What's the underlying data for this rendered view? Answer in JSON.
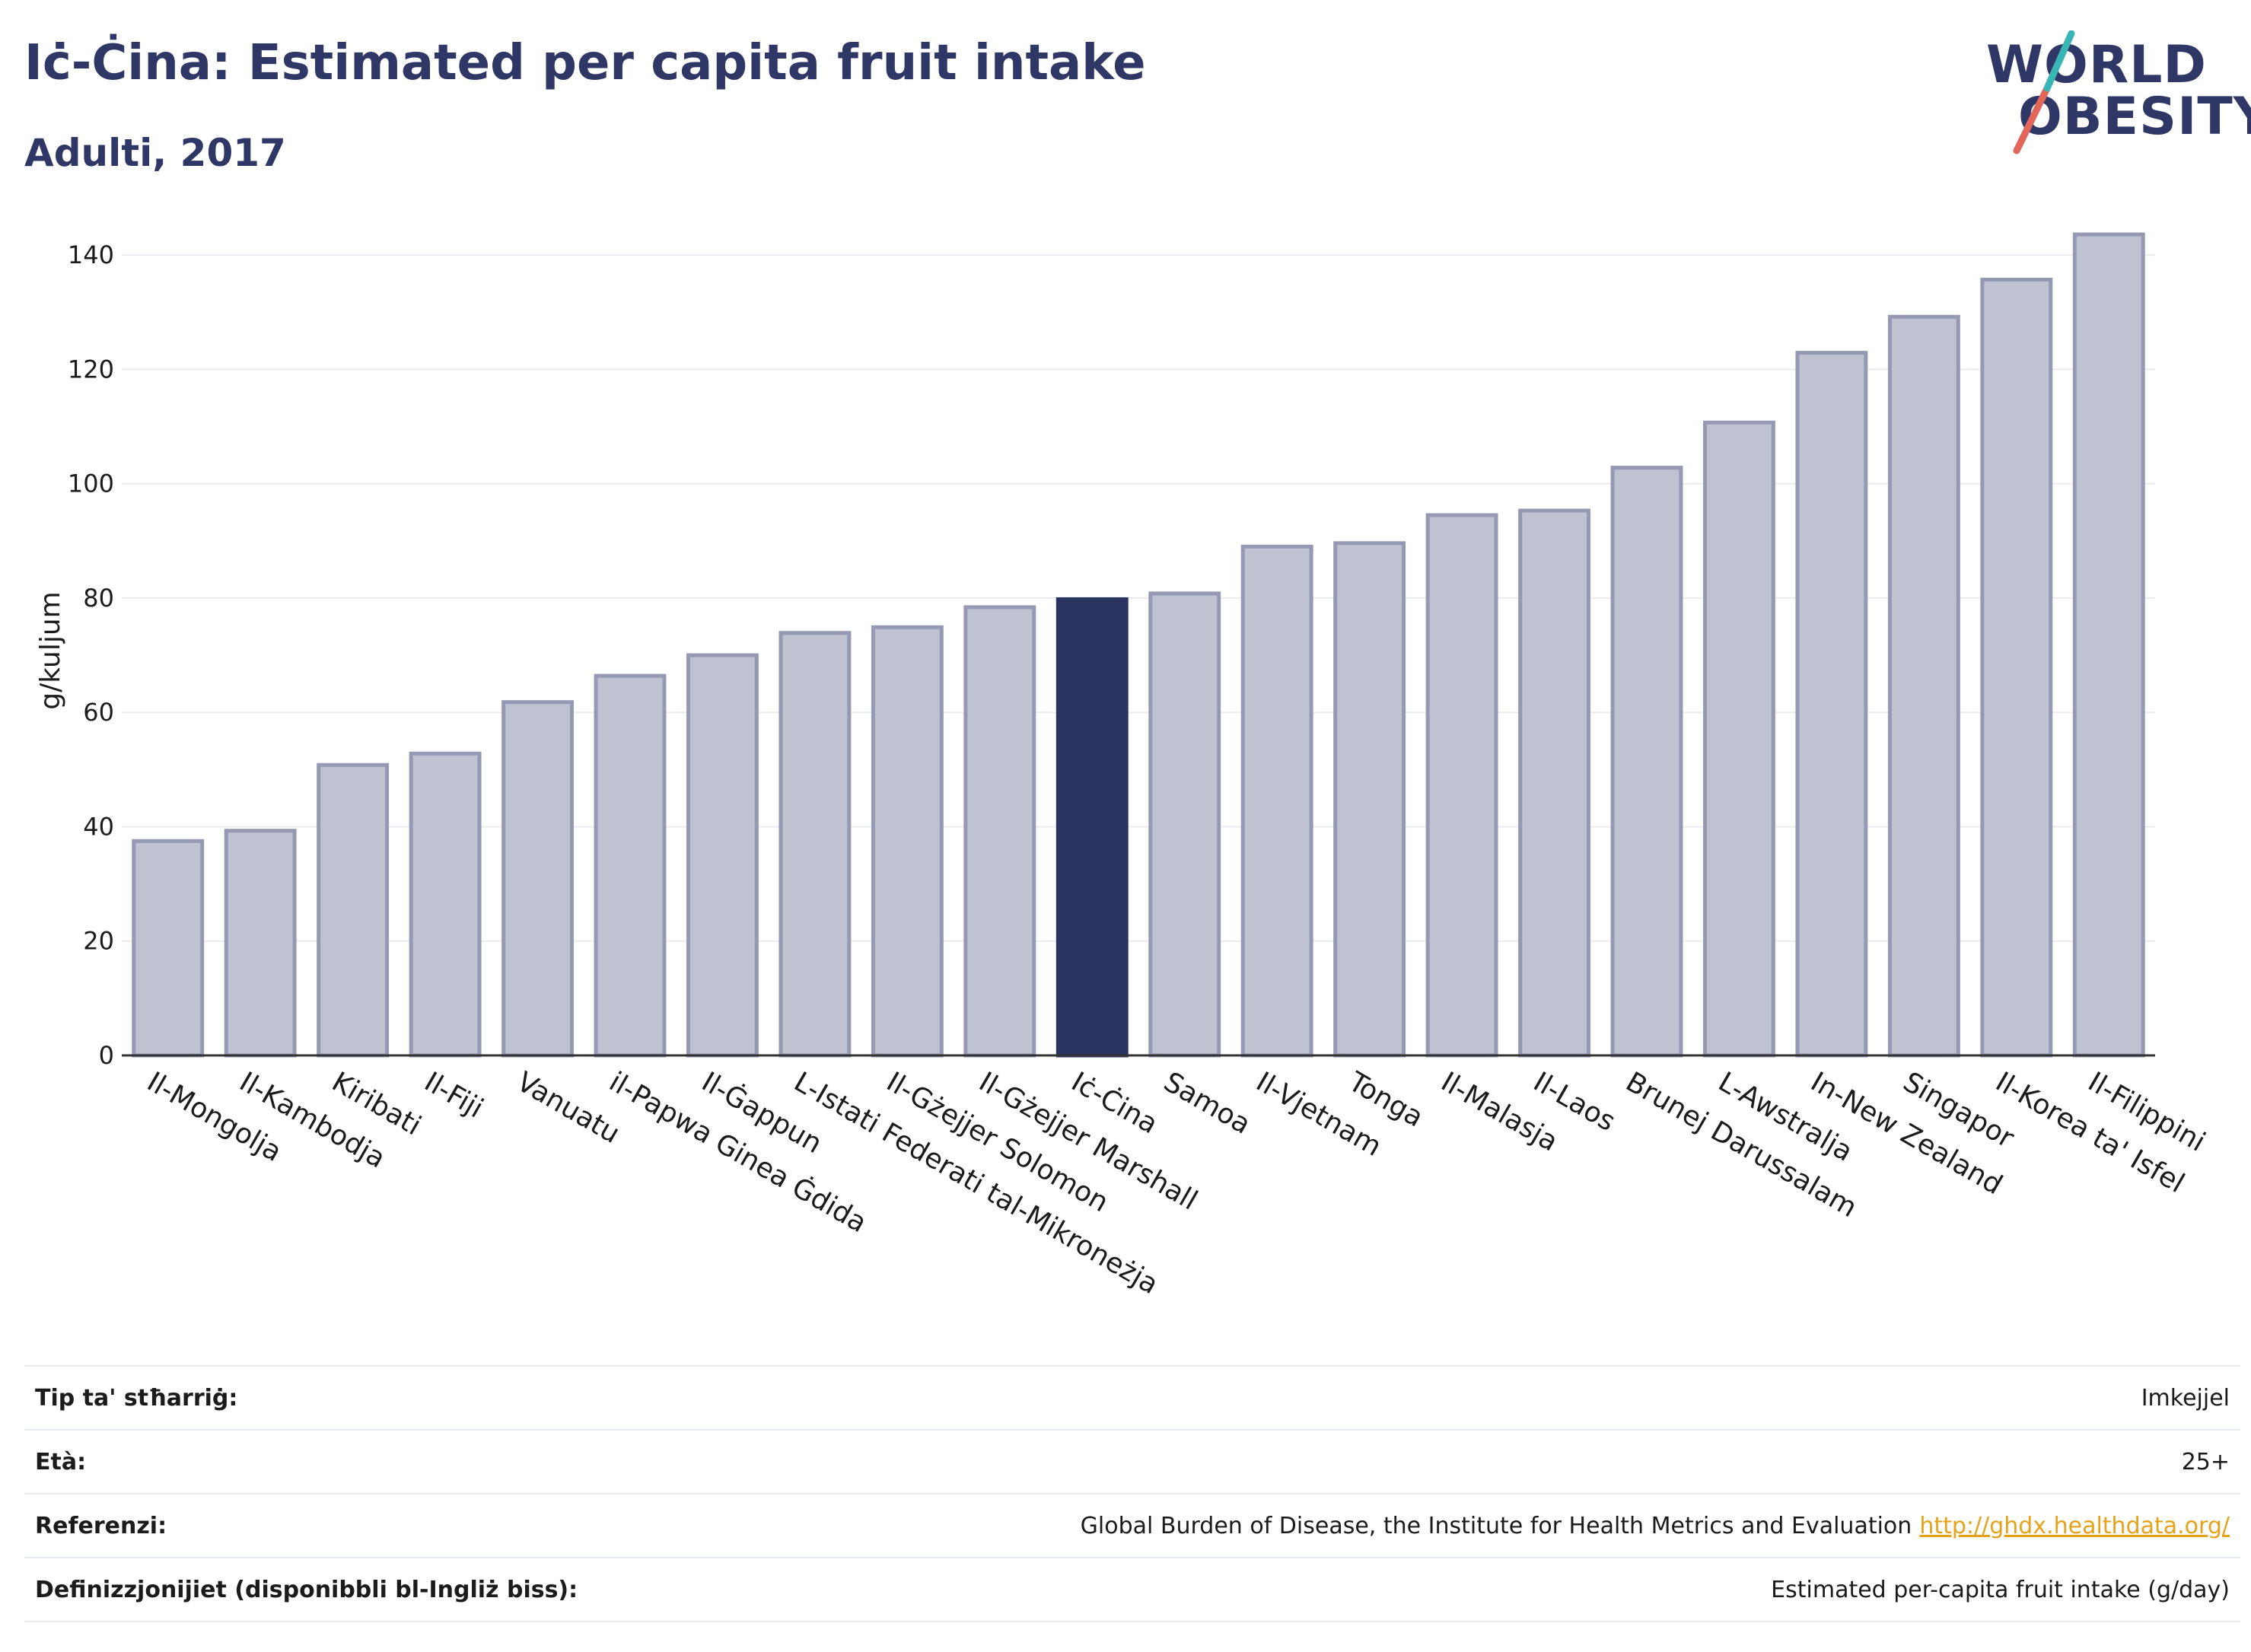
{
  "header": {
    "title": "Iċ-Ċina: Estimated per capita fruit intake",
    "subtitle": "Adulti, 2017"
  },
  "logo": {
    "line1": "WORLD",
    "line2": "OBESITY"
  },
  "colors": {
    "bar": "#bfc2d0",
    "bar_stroke": "#9599b3",
    "highlight": "#2b3461",
    "grid": "#e9ebef",
    "axis": "#333333",
    "link": "#e7a21b"
  },
  "chart_data": {
    "type": "bar",
    "xlabel": "",
    "ylabel": "g/kuljum",
    "ylim": [
      0,
      150
    ],
    "yticks": [
      0,
      20,
      40,
      60,
      80,
      100,
      120,
      140
    ],
    "grid": true,
    "highlight": "Iċ-Ċina",
    "categories": [
      "Il-Mongolja",
      "Il-Kambodja",
      "Kiribati",
      "Il-Fiji",
      "Vanuatu",
      "il-Papwa Ginea Ġdida",
      "Il-Ġappun",
      "L-Istati Federati tal-Mikroneżja",
      "Il-Gżejjer Solomon",
      "Il-Gżejjer Marshall",
      "Iċ-Ċina",
      "Samoa",
      "Il-Vjetnam",
      "Tonga",
      "Il-Malasja",
      "Il-Laos",
      "Brunej Darussalam",
      "L-Awstralja",
      "In-New Zealand",
      "Singapor",
      "Il-Korea ta' Isfel",
      "Il-Filippini"
    ],
    "values": [
      37.5,
      39.3,
      50.8,
      52.8,
      61.8,
      66.4,
      70.0,
      73.9,
      74.9,
      78.4,
      79.8,
      80.8,
      89.0,
      89.6,
      94.5,
      95.3,
      102.8,
      110.7,
      122.9,
      129.2,
      135.7,
      143.6
    ]
  },
  "info": [
    {
      "key": "Tip ta' stħarriġ:",
      "value": "Imkejjel",
      "link": ""
    },
    {
      "key": "Età:",
      "value": "25+",
      "link": ""
    },
    {
      "key": "Referenzi:",
      "value": "Global Burden of Disease, the Institute for Health Metrics and Evaluation",
      "link": "http://ghdx.healthdata.org/"
    },
    {
      "key": "Definizzjonijiet (disponibbli bl-Ingliż biss):",
      "value": "Estimated per-capita fruit intake (g/day)",
      "link": ""
    }
  ]
}
